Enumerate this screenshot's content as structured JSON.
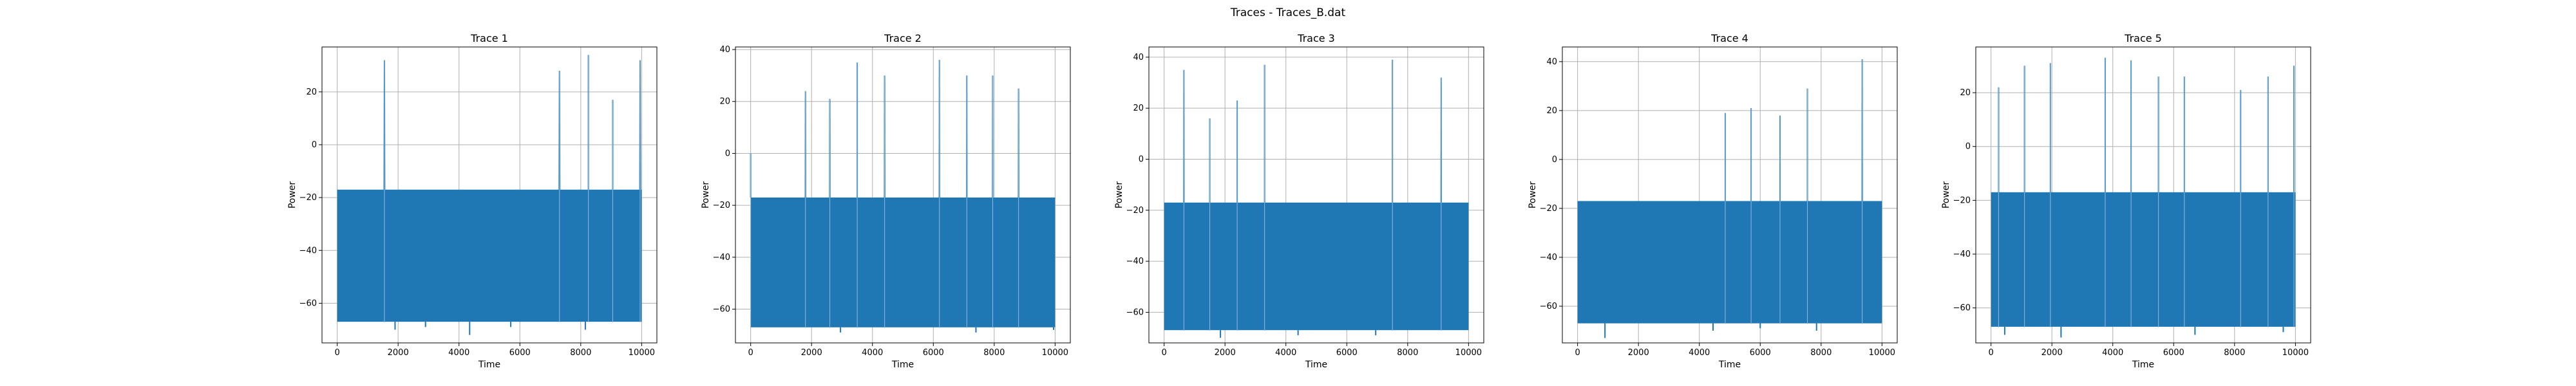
{
  "figure": {
    "suptitle": "Traces - Traces_B.dat"
  },
  "style": {
    "trace_color": "#1f77b4",
    "grid_color": "#b0b0b0"
  },
  "chart_data": [
    {
      "type": "line",
      "title": "Trace 1",
      "xlabel": "Time",
      "ylabel": "Power",
      "xlim": [
        -500,
        10500
      ],
      "ylim": [
        -75,
        37
      ],
      "xticks": [
        0,
        2000,
        4000,
        6000,
        8000,
        10000
      ],
      "yticks": [
        -60,
        -40,
        -20,
        0,
        20
      ],
      "grid": true,
      "series": [
        {
          "x_range": [
            0,
            10000
          ],
          "band": [
            -67,
            -17
          ],
          "spikes": [
            {
              "x": 1550,
              "peak": 32,
              "width": 60
            },
            {
              "x": 7300,
              "peak": 28,
              "width": 60
            },
            {
              "x": 8250,
              "peak": 34,
              "width": 40
            },
            {
              "x": 9050,
              "peak": 17,
              "width": 40
            },
            {
              "x": 9950,
              "peak": 32,
              "width": 60
            }
          ],
          "dips": [
            {
              "x": 1900,
              "min": -70
            },
            {
              "x": 2900,
              "min": -69
            },
            {
              "x": 4350,
              "min": -72
            },
            {
              "x": 5700,
              "min": -69
            },
            {
              "x": 8150,
              "min": -70
            }
          ]
        }
      ]
    },
    {
      "type": "line",
      "title": "Trace 2",
      "xlabel": "Time",
      "ylabel": "Power",
      "xlim": [
        -500,
        10500
      ],
      "ylim": [
        -73,
        41
      ],
      "xticks": [
        0,
        2000,
        4000,
        6000,
        8000,
        10000
      ],
      "yticks": [
        -60,
        -40,
        -20,
        0,
        20,
        40
      ],
      "grid": true,
      "series": [
        {
          "x_range": [
            0,
            10000
          ],
          "band": [
            -67,
            -17
          ],
          "spikes": [
            {
              "x": 0,
              "peak": 0,
              "width": 10
            },
            {
              "x": 1800,
              "peak": 24,
              "width": 50
            },
            {
              "x": 2600,
              "peak": 21,
              "width": 50
            },
            {
              "x": 3500,
              "peak": 35,
              "width": 40
            },
            {
              "x": 4400,
              "peak": 30,
              "width": 50
            },
            {
              "x": 6200,
              "peak": 36,
              "width": 50
            },
            {
              "x": 7100,
              "peak": 30,
              "width": 50
            },
            {
              "x": 7950,
              "peak": 30,
              "width": 50
            },
            {
              "x": 8800,
              "peak": 25,
              "width": 50
            }
          ],
          "dips": [
            {
              "x": 2950,
              "min": -69
            },
            {
              "x": 7400,
              "min": -69
            },
            {
              "x": 9950,
              "min": -68
            }
          ]
        }
      ]
    },
    {
      "type": "line",
      "title": "Trace 3",
      "xlabel": "Time",
      "ylabel": "Power",
      "xlim": [
        -500,
        10500
      ],
      "ylim": [
        -72,
        44
      ],
      "xticks": [
        0,
        2000,
        4000,
        6000,
        8000,
        10000
      ],
      "yticks": [
        -60,
        -40,
        -20,
        0,
        20,
        40
      ],
      "grid": true,
      "series": [
        {
          "x_range": [
            0,
            10000
          ],
          "band": [
            -67,
            -17
          ],
          "spikes": [
            {
              "x": 650,
              "peak": 35,
              "width": 50
            },
            {
              "x": 1500,
              "peak": 16,
              "width": 40
            },
            {
              "x": 2400,
              "peak": 23,
              "width": 40
            },
            {
              "x": 3300,
              "peak": 37,
              "width": 40
            },
            {
              "x": 7500,
              "peak": 39,
              "width": 30
            },
            {
              "x": 9100,
              "peak": 32,
              "width": 50
            }
          ],
          "dips": [
            {
              "x": 1850,
              "min": -70
            },
            {
              "x": 4400,
              "min": -69
            },
            {
              "x": 6950,
              "min": -69
            }
          ]
        }
      ]
    },
    {
      "type": "line",
      "title": "Trace 4",
      "xlabel": "Time",
      "ylabel": "Power",
      "xlim": [
        -500,
        10500
      ],
      "ylim": [
        -75,
        46
      ],
      "xticks": [
        0,
        2000,
        4000,
        6000,
        8000,
        10000
      ],
      "yticks": [
        -60,
        -40,
        -20,
        0,
        20,
        40
      ],
      "grid": true,
      "series": [
        {
          "x_range": [
            0,
            10000
          ],
          "band": [
            -67,
            -17
          ],
          "spikes": [
            {
              "x": 4850,
              "peak": 19,
              "width": 40
            },
            {
              "x": 5700,
              "peak": 21,
              "width": 40
            },
            {
              "x": 6650,
              "peak": 18,
              "width": 40
            },
            {
              "x": 7550,
              "peak": 29,
              "width": 40
            },
            {
              "x": 9350,
              "peak": 41,
              "width": 50
            }
          ],
          "dips": [
            {
              "x": 900,
              "min": -73
            },
            {
              "x": 4450,
              "min": -70
            },
            {
              "x": 6000,
              "min": -69
            },
            {
              "x": 7850,
              "min": -70
            }
          ]
        }
      ]
    },
    {
      "type": "line",
      "title": "Trace 5",
      "xlabel": "Time",
      "ylabel": "Power",
      "xlim": [
        -500,
        10500
      ],
      "ylim": [
        -73,
        37
      ],
      "xticks": [
        0,
        2000,
        4000,
        6000,
        8000,
        10000
      ],
      "yticks": [
        -60,
        -40,
        -20,
        0,
        20
      ],
      "grid": true,
      "series": [
        {
          "x_range": [
            0,
            10000
          ],
          "band": [
            -67,
            -17
          ],
          "spikes": [
            {
              "x": 250,
              "peak": 22,
              "width": 40
            },
            {
              "x": 1100,
              "peak": 30,
              "width": 40
            },
            {
              "x": 1950,
              "peak": 31,
              "width": 40
            },
            {
              "x": 3750,
              "peak": 33,
              "width": 40
            },
            {
              "x": 4600,
              "peak": 32,
              "width": 40
            },
            {
              "x": 5500,
              "peak": 26,
              "width": 40
            },
            {
              "x": 6350,
              "peak": 26,
              "width": 40
            },
            {
              "x": 8200,
              "peak": 21,
              "width": 40
            },
            {
              "x": 9100,
              "peak": 26,
              "width": 40
            },
            {
              "x": 9950,
              "peak": 30,
              "width": 40
            }
          ],
          "dips": [
            {
              "x": 450,
              "min": -70
            },
            {
              "x": 2300,
              "min": -71
            },
            {
              "x": 6700,
              "min": -70
            },
            {
              "x": 9600,
              "min": -69
            }
          ]
        }
      ]
    }
  ]
}
